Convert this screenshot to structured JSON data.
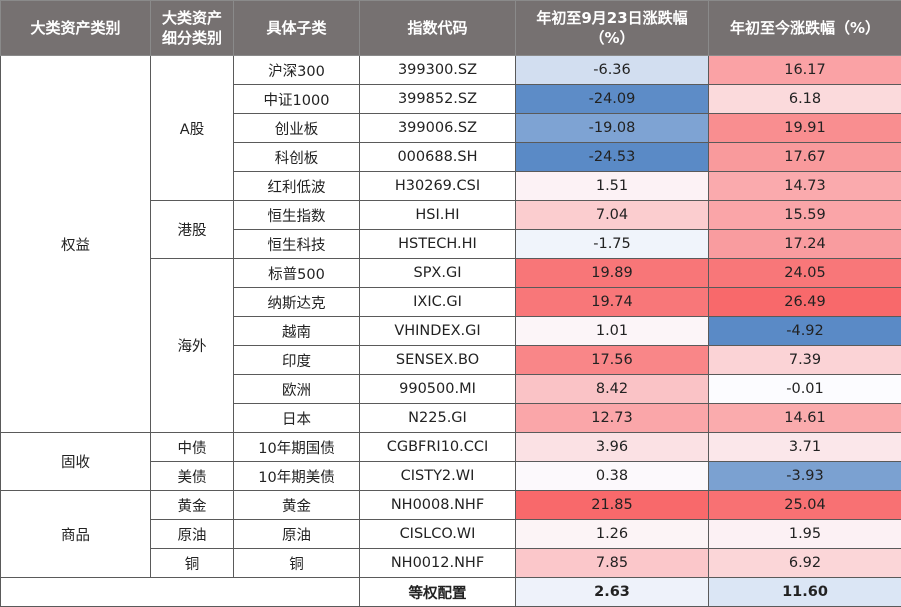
{
  "headers": [
    "大类资产类别",
    "大类资产\n细分类别",
    "具体子类",
    "指数代码",
    "年初至9月23日涨跌幅\n（%）",
    "年初至今涨跌幅（%）"
  ],
  "categories": [
    {
      "name": "权益",
      "subcats": [
        {
          "name": "A股",
          "rows": [
            {
              "sub": "沪深300",
              "code": "399300.SZ",
              "v1": "-6.36",
              "v2": "16.17"
            },
            {
              "sub": "中证1000",
              "code": "399852.SZ",
              "v1": "-24.09",
              "v2": "6.18"
            },
            {
              "sub": "创业板",
              "code": "399006.SZ",
              "v1": "-19.08",
              "v2": "19.91"
            },
            {
              "sub": "科创板",
              "code": "000688.SH",
              "v1": "-24.53",
              "v2": "17.67"
            },
            {
              "sub": "红利低波",
              "code": "H30269.CSI",
              "v1": "1.51",
              "v2": "14.73"
            }
          ]
        },
        {
          "name": "港股",
          "rows": [
            {
              "sub": "恒生指数",
              "code": "HSI.HI",
              "v1": "7.04",
              "v2": "15.59"
            },
            {
              "sub": "恒生科技",
              "code": "HSTECH.HI",
              "v1": "-1.75",
              "v2": "17.24"
            }
          ]
        },
        {
          "name": "海外",
          "rows": [
            {
              "sub": "标普500",
              "code": "SPX.GI",
              "v1": "19.89",
              "v2": "24.05"
            },
            {
              "sub": "纳斯达克",
              "code": "IXIC.GI",
              "v1": "19.74",
              "v2": "26.49"
            },
            {
              "sub": "越南",
              "code": "VHINDEX.GI",
              "v1": "1.01",
              "v2": "-4.92"
            },
            {
              "sub": "印度",
              "code": "SENSEX.BO",
              "v1": "17.56",
              "v2": "7.39"
            },
            {
              "sub": "欧洲",
              "code": "990500.MI",
              "v1": "8.42",
              "v2": "-0.01"
            },
            {
              "sub": "日本",
              "code": "N225.GI",
              "v1": "12.73",
              "v2": "14.61"
            }
          ]
        }
      ]
    },
    {
      "name": "固收",
      "subcats": [
        {
          "name": "中债",
          "rows": [
            {
              "sub": "10年期国债",
              "code": "CGBFRI10.CCI",
              "v1": "3.96",
              "v2": "3.71"
            }
          ]
        },
        {
          "name": "美债",
          "rows": [
            {
              "sub": "10年期美债",
              "code": "CISTY2.WI",
              "v1": "0.38",
              "v2": "-3.93"
            }
          ]
        }
      ]
    },
    {
      "name": "商品",
      "subcats": [
        {
          "name": "黄金",
          "rows": [
            {
              "sub": "黄金",
              "code": "NH0008.NHF",
              "v1": "21.85",
              "v2": "25.04"
            }
          ]
        },
        {
          "name": "原油",
          "rows": [
            {
              "sub": "原油",
              "code": "CISLCO.WI",
              "v1": "1.26",
              "v2": "1.95"
            }
          ]
        },
        {
          "name": "铜",
          "rows": [
            {
              "sub": "铜",
              "code": "NH0012.NHF",
              "v1": "7.85",
              "v2": "6.92"
            }
          ]
        }
      ]
    }
  ],
  "total": {
    "label": "等权配置",
    "v1": "2.63",
    "v2": "11.60"
  },
  "colors": {
    "header_bg": "#767171",
    "positive": "#f8696b",
    "negative": "#5a8ac6",
    "neutral": "#fcfcff"
  }
}
